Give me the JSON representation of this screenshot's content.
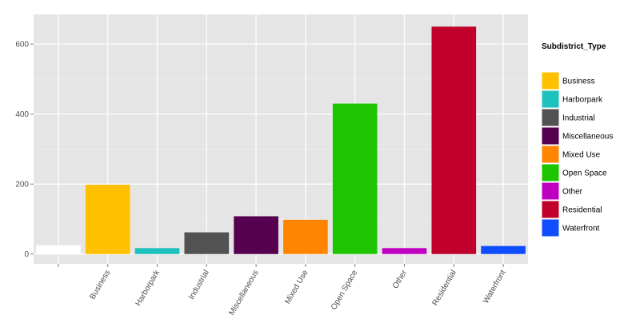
{
  "chart_data": {
    "type": "bar",
    "categories": [
      "",
      "Business",
      "Harborpark",
      "Industrial",
      "Miscellaneous",
      "Mixed Use",
      "Open Space",
      "Other",
      "Residential",
      "Waterfront"
    ],
    "values": [
      25,
      198,
      17,
      62,
      108,
      98,
      430,
      17,
      650,
      23
    ],
    "colors": [
      "#ffffff",
      "#ffc000",
      "#1ec1bc",
      "#525252",
      "#560050",
      "#ff8500",
      "#1dc500",
      "#c000c0",
      "#c0002a",
      "#0f4dff"
    ],
    "title": "",
    "xlabel": "",
    "ylabel": "",
    "ylim": [
      -28,
      685
    ],
    "yticks": [
      0,
      200,
      400,
      600
    ],
    "grid": true,
    "legend": {
      "title": "Subdistrict_Type",
      "position": "right",
      "entries": [
        {
          "label": "Business",
          "color": "#ffc000"
        },
        {
          "label": "Harborpark",
          "color": "#1ec1bc"
        },
        {
          "label": "Industrial",
          "color": "#525252"
        },
        {
          "label": "Miscellaneous",
          "color": "#560050"
        },
        {
          "label": "Mixed Use",
          "color": "#ff8500"
        },
        {
          "label": "Open Space",
          "color": "#1dc500"
        },
        {
          "label": "Other",
          "color": "#c000c0"
        },
        {
          "label": "Residential",
          "color": "#c0002a"
        },
        {
          "label": "Waterfront",
          "color": "#0f4dff"
        }
      ]
    }
  }
}
